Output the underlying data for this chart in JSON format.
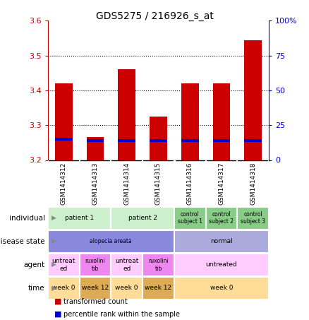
{
  "title": "GDS5275 / 216926_s_at",
  "samples": [
    "GSM1414312",
    "GSM1414313",
    "GSM1414314",
    "GSM1414315",
    "GSM1414316",
    "GSM1414317",
    "GSM1414318"
  ],
  "transformed_count": [
    3.42,
    3.265,
    3.46,
    3.325,
    3.42,
    3.42,
    3.545
  ],
  "percentile_rank": [
    15,
    14,
    14,
    14,
    14,
    14,
    14
  ],
  "ylim_left": [
    3.2,
    3.6
  ],
  "ylim_right": [
    0,
    100
  ],
  "yticks_left": [
    3.2,
    3.3,
    3.4,
    3.5,
    3.6
  ],
  "yticks_right": [
    0,
    25,
    50,
    75,
    100
  ],
  "bar_bottom": 3.2,
  "row_labels": [
    "individual",
    "disease state",
    "agent",
    "time"
  ],
  "individual_data": [
    {
      "label": "patient 1",
      "span": [
        0,
        2
      ],
      "color": "#ccf0cc"
    },
    {
      "label": "patient 2",
      "span": [
        2,
        4
      ],
      "color": "#ccf0cc"
    },
    {
      "label": "control\nsubject 1",
      "span": [
        4,
        5
      ],
      "color": "#88cc88"
    },
    {
      "label": "control\nsubject 2",
      "span": [
        5,
        6
      ],
      "color": "#88cc88"
    },
    {
      "label": "control\nsubject 3",
      "span": [
        6,
        7
      ],
      "color": "#88cc88"
    }
  ],
  "disease_data": [
    {
      "label": "alopecia areata",
      "span": [
        0,
        4
      ],
      "color": "#8888dd"
    },
    {
      "label": "normal",
      "span": [
        4,
        7
      ],
      "color": "#aaaadd"
    }
  ],
  "agent_data": [
    {
      "label": "untreat\ned",
      "span": [
        0,
        1
      ],
      "color": "#ffccff"
    },
    {
      "label": "ruxolini\ntib",
      "span": [
        1,
        2
      ],
      "color": "#ee88ee"
    },
    {
      "label": "untreat\ned",
      "span": [
        2,
        3
      ],
      "color": "#ffccff"
    },
    {
      "label": "ruxolini\ntib",
      "span": [
        3,
        4
      ],
      "color": "#ee88ee"
    },
    {
      "label": "untreated",
      "span": [
        4,
        7
      ],
      "color": "#ffccff"
    }
  ],
  "time_data": [
    {
      "label": "week 0",
      "span": [
        0,
        1
      ],
      "color": "#ffdd99"
    },
    {
      "label": "week 12",
      "span": [
        1,
        2
      ],
      "color": "#ddaa55"
    },
    {
      "label": "week 0",
      "span": [
        2,
        3
      ],
      "color": "#ffdd99"
    },
    {
      "label": "week 12",
      "span": [
        3,
        4
      ],
      "color": "#ddaa55"
    },
    {
      "label": "week 0",
      "span": [
        4,
        7
      ],
      "color": "#ffdd99"
    }
  ],
  "bar_color": "#cc0000",
  "percentile_color": "#0000cc",
  "left_axis_color": "#cc0000",
  "right_axis_color": "#0000cc",
  "bg_color": "#ffffff",
  "sample_bg_color": "#cccccc",
  "grid_color": "#000000",
  "legend_items": [
    {
      "color": "#cc0000",
      "label": "transformed count"
    },
    {
      "color": "#0000cc",
      "label": "percentile rank within the sample"
    }
  ]
}
